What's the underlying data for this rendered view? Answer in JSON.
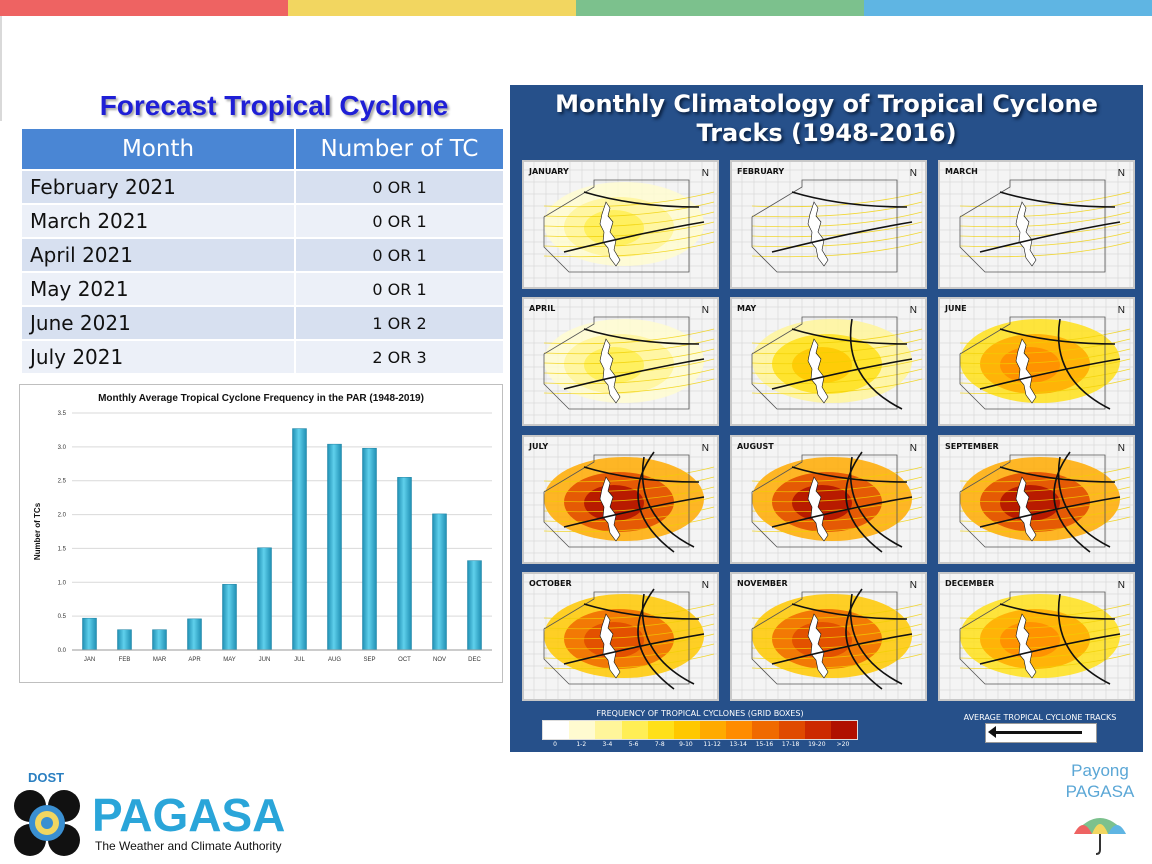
{
  "topbar_colors": [
    "#ee6362",
    "#f2d660",
    "#7cc18d",
    "#5fb5e3"
  ],
  "forecast": {
    "title": "Forecast Tropical Cyclone",
    "col_month": "Month",
    "col_count": "Number of TC",
    "rows": [
      {
        "month": "February 2021",
        "count": "0 OR 1"
      },
      {
        "month": "March 2021",
        "count": "0 OR 1"
      },
      {
        "month": "April 2021",
        "count": "0 OR 1"
      },
      {
        "month": "May 2021",
        "count": "0 OR 1"
      },
      {
        "month": "June 2021",
        "count": "1 OR 2"
      },
      {
        "month": "July 2021",
        "count": "2 OR 3"
      }
    ]
  },
  "chart_data": {
    "type": "bar",
    "title": "Monthly Average Tropical Cyclone Frequency in the PAR (1948-2019)",
    "xlabel": "",
    "ylabel": "Number of TCs",
    "categories": [
      "JAN",
      "FEB",
      "MAR",
      "APR",
      "MAY",
      "JUN",
      "JUL",
      "AUG",
      "SEP",
      "OCT",
      "NOV",
      "DEC"
    ],
    "values": [
      0.47,
      0.3,
      0.3,
      0.46,
      0.97,
      1.51,
      3.27,
      3.04,
      2.98,
      2.55,
      2.01,
      1.32
    ],
    "ylim": [
      0,
      3.5
    ],
    "yticks": [
      "0.0",
      "0.5",
      "1.0",
      "1.5",
      "2.0",
      "2.5",
      "3.0",
      "3.5"
    ],
    "grid": true,
    "bar_color": "#3fb6d8"
  },
  "climatology": {
    "title_line1": "Monthly Climatology of Tropical Cyclone",
    "title_line2": "Tracks (1948-2016)",
    "months": [
      "JANUARY",
      "FEBRUARY",
      "MARCH",
      "APRIL",
      "MAY",
      "JUNE",
      "JULY",
      "AUGUST",
      "SEPTEMBER",
      "OCTOBER",
      "NOVEMBER",
      "DECEMBER"
    ],
    "intensity": [
      1,
      0,
      0,
      1,
      2,
      3,
      5,
      5,
      5,
      4,
      4,
      3
    ],
    "north_symbol": "N",
    "freq_title": "FREQUENCY OF TROPICAL CYCLONES (GRID BOXES)",
    "freq_labels": [
      "0",
      "1-2",
      "3-4",
      "5-6",
      "7-8",
      "9-10",
      "11-12",
      "13-14",
      "15-16",
      "17-18",
      "19-20",
      ">20"
    ],
    "freq_colors": [
      "#ffffff",
      "#fffbd0",
      "#fff59a",
      "#ffee55",
      "#ffe01a",
      "#ffc800",
      "#ffaa00",
      "#ff8c00",
      "#f06a00",
      "#e04a00",
      "#cc2a00",
      "#b01000"
    ],
    "avg_title": "AVERAGE TROPICAL CYCLONE TRACKS"
  },
  "logo": {
    "dost": "DOST",
    "pagasa": "PAGASA",
    "tagline": "The Weather and Climate Authority",
    "payong_line1": "Payong",
    "payong_line2": "PAGASA"
  }
}
